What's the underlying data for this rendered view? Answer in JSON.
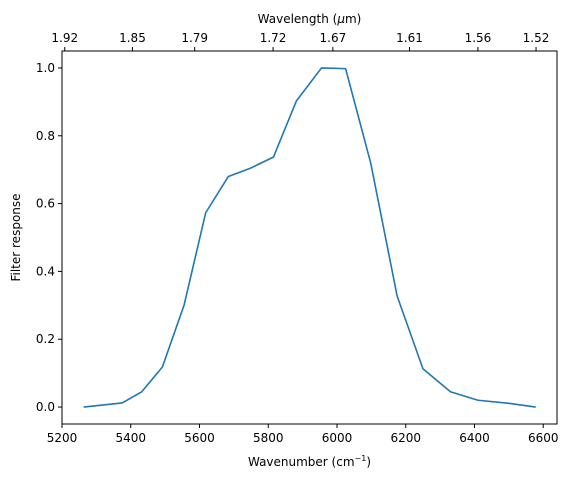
{
  "chart_data": {
    "type": "line",
    "xlabel": "Wavenumber (cm",
    "xlabel_sup": "−1",
    "xlabel_close": ")",
    "ylabel": "Filter response",
    "top_xlabel_prefix": "Wavelength (",
    "top_xlabel_mu": "μ",
    "top_xlabel_suffix": "m)",
    "xlim": [
      5200,
      6640
    ],
    "ylim": [
      -0.05,
      1.05
    ],
    "xticks": [
      5200,
      5400,
      5600,
      5800,
      6000,
      6200,
      6400,
      6600
    ],
    "yticks": [
      0.0,
      0.2,
      0.4,
      0.6,
      0.8,
      1.0
    ],
    "xtick_labels": [
      "5200",
      "5400",
      "5600",
      "5800",
      "6000",
      "6200",
      "6400",
      "6600"
    ],
    "ytick_labels": [
      "0.0",
      "0.2",
      "0.4",
      "0.6",
      "0.8",
      "1.0"
    ],
    "top_ticks": [
      {
        "wavenumber": 5208,
        "label": "1.92"
      },
      {
        "wavenumber": 5405,
        "label": "1.85"
      },
      {
        "wavenumber": 5586,
        "label": "1.79"
      },
      {
        "wavenumber": 5814,
        "label": "1.72"
      },
      {
        "wavenumber": 5988,
        "label": "1.67"
      },
      {
        "wavenumber": 6211,
        "label": "1.61"
      },
      {
        "wavenumber": 6410,
        "label": "1.56"
      },
      {
        "wavenumber": 6579,
        "label": "1.52"
      }
    ],
    "series": [
      {
        "color": "#1f77b4",
        "x": [
          5263,
          5375,
          5432,
          5492,
          5555,
          5618,
          5684,
          5745,
          5815,
          5882,
          5955,
          6025,
          6098,
          6175,
          6250,
          6330,
          6410,
          6500,
          6578
        ],
        "y": [
          0.0,
          0.012,
          0.045,
          0.118,
          0.3,
          0.573,
          0.68,
          0.703,
          0.737,
          0.903,
          1.0,
          0.998,
          0.72,
          0.327,
          0.113,
          0.045,
          0.02,
          0.011,
          0.0
        ]
      }
    ],
    "grid": false,
    "legend": "none"
  }
}
